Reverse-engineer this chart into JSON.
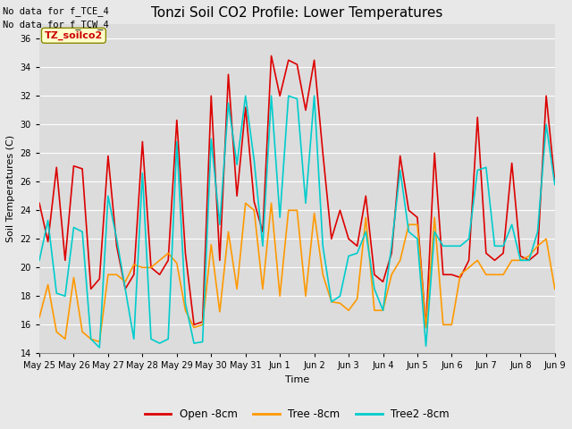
{
  "title": "Tonzi Soil CO2 Profile: Lower Temperatures",
  "xlabel": "Time",
  "ylabel": "Soil Temperatures (C)",
  "ylim": [
    14,
    37
  ],
  "yticks": [
    14,
    16,
    18,
    20,
    22,
    24,
    26,
    28,
    30,
    32,
    34,
    36
  ],
  "annotation_line1": "No data for f_TCE_4",
  "annotation_line2": "No data for f_TCW_4",
  "watermark_text": "TZ_soilco2",
  "xtick_labels": [
    "May 25",
    "May 26",
    "May 27",
    "May 28",
    "May 29",
    "May 30",
    "May 31",
    "Jun 1",
    "Jun 2",
    "Jun 3",
    "Jun 4",
    "Jun 5",
    "Jun 6",
    "Jun 7",
    "Jun 8",
    "Jun 9"
  ],
  "legend_labels": [
    "Open -8cm",
    "Tree -8cm",
    "Tree2 -8cm"
  ],
  "legend_colors": [
    "#dd0000",
    "#ff9900",
    "#00cccc"
  ],
  "background_color": "#e8e8e8",
  "plot_bg_color": "#dcdcdc",
  "grid_color": "#ffffff",
  "open_8cm": [
    24.5,
    21.8,
    27.0,
    20.5,
    27.1,
    26.9,
    18.5,
    19.2,
    27.8,
    21.5,
    18.5,
    19.5,
    28.8,
    20.0,
    19.5,
    20.5,
    30.3,
    21.0,
    16.0,
    16.2,
    32.0,
    20.5,
    33.5,
    25.0,
    31.2,
    24.6,
    22.5,
    34.8,
    32.0,
    34.5,
    34.2,
    31.0,
    34.5,
    28.0,
    22.0,
    24.0,
    22.0,
    21.5,
    25.0,
    19.5,
    19.0,
    21.0,
    27.8,
    24.0,
    23.5,
    15.8,
    28.0,
    19.5,
    19.5,
    19.3,
    20.5,
    30.5,
    21.0,
    20.5,
    21.0,
    27.3,
    20.8,
    20.5,
    21.0,
    32.0,
    26.0
  ],
  "tree_8cm": [
    16.5,
    18.8,
    15.5,
    15.0,
    19.3,
    15.5,
    15.0,
    14.8,
    19.5,
    19.5,
    19.0,
    20.2,
    20.0,
    20.0,
    20.5,
    21.0,
    20.3,
    17.0,
    15.8,
    16.0,
    21.6,
    16.9,
    22.5,
    18.5,
    24.5,
    24.0,
    18.5,
    24.5,
    18.0,
    24.0,
    24.0,
    18.0,
    23.8,
    19.5,
    17.6,
    17.5,
    17.0,
    17.8,
    23.5,
    17.0,
    17.0,
    19.5,
    20.5,
    23.0,
    23.0,
    15.8,
    23.5,
    16.0,
    16.0,
    19.5,
    20.0,
    20.5,
    19.5,
    19.5,
    19.5,
    20.5,
    20.5,
    20.8,
    21.5,
    22.0,
    18.5
  ],
  "tree2_8cm": [
    20.5,
    23.3,
    18.2,
    18.0,
    22.8,
    22.5,
    15.0,
    14.4,
    25.0,
    22.0,
    18.5,
    15.0,
    26.6,
    15.0,
    14.7,
    15.0,
    28.8,
    17.5,
    14.7,
    14.8,
    29.0,
    23.0,
    31.5,
    27.2,
    32.0,
    27.5,
    21.5,
    32.0,
    23.5,
    32.0,
    31.8,
    24.5,
    32.0,
    21.5,
    17.6,
    18.0,
    20.8,
    21.0,
    22.5,
    18.5,
    17.0,
    21.5,
    26.8,
    22.5,
    22.0,
    14.5,
    22.5,
    21.5,
    21.5,
    21.5,
    22.0,
    26.8,
    27.0,
    21.5,
    21.5,
    23.0,
    20.5,
    20.5,
    22.5,
    30.0,
    25.8
  ]
}
